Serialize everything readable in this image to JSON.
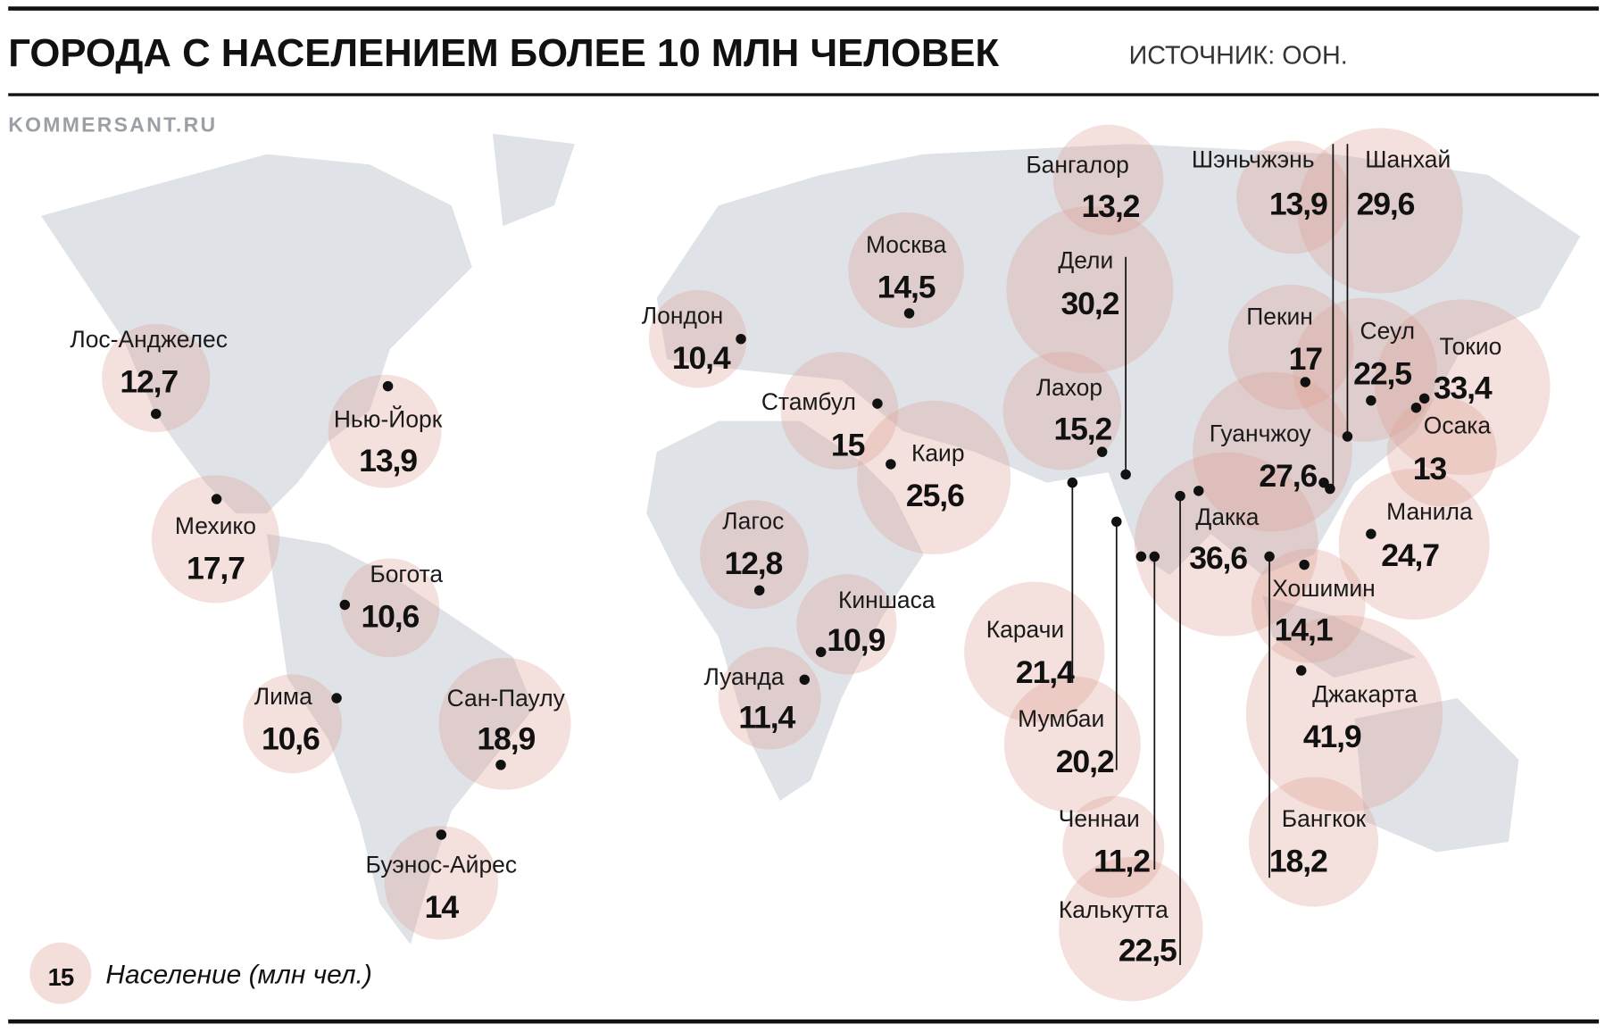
{
  "header": {
    "title": "ГОРОДА С НАСЕЛЕНИЕМ БОЛЕЕ 10 МЛН ЧЕЛОВЕК",
    "source": "ИСТОЧНИК: ООН.",
    "site": "KOMMERSANT.RU"
  },
  "cities": [
    {
      "name": "Лос-Анджелес",
      "value": 12.7,
      "label": "12,7"
    },
    {
      "name": "Нью-Йорк",
      "value": 13.9,
      "label": "13,9"
    },
    {
      "name": "Мехико",
      "value": 17.7,
      "label": "17,7"
    },
    {
      "name": "Богота",
      "value": 10.6,
      "label": "10,6"
    },
    {
      "name": "Лима",
      "value": 10.6,
      "label": "10,6"
    },
    {
      "name": "Сан-Паулу",
      "value": 18.9,
      "label": "18,9"
    },
    {
      "name": "Буэнос-Айрес",
      "value": 14
    },
    {
      "name": "Лондон",
      "value": 10.4,
      "label": "10,4"
    },
    {
      "name": "Стамбул",
      "value": 15
    },
    {
      "name": "Каир",
      "value": 25.6,
      "label": "25,6"
    },
    {
      "name": "Москва",
      "value": 14.5,
      "label": "14,5"
    },
    {
      "name": "Лагос",
      "value": 12.8,
      "label": "12,8"
    },
    {
      "name": "Киншаса",
      "value": 10.9,
      "label": "10,9"
    },
    {
      "name": "Луанда",
      "value": 11.4,
      "label": "11,4"
    },
    {
      "name": "Бангалор",
      "value": 13.2,
      "label": "13,2"
    },
    {
      "name": "Дели",
      "value": 30.2,
      "label": "30,2"
    },
    {
      "name": "Лахор",
      "value": 15.2,
      "label": "15,2"
    },
    {
      "name": "Карачи",
      "value": 21.4,
      "label": "21,4"
    },
    {
      "name": "Мумбаи",
      "value": 20.2,
      "label": "20,2"
    },
    {
      "name": "Ченнаи",
      "value": 11.2,
      "label": "11,2"
    },
    {
      "name": "Калькутта",
      "value": 22.5,
      "label": "22,5"
    },
    {
      "name": "Дакка",
      "value": 36.6,
      "label": "36,6"
    },
    {
      "name": "Шэньчжэнь",
      "value": 13.9,
      "label": "13,9"
    },
    {
      "name": "Шанхай",
      "value": 29.6,
      "label": "29,6"
    },
    {
      "name": "Пекин",
      "value": 17
    },
    {
      "name": "Сеул",
      "value": 22.5,
      "label": "22,5"
    },
    {
      "name": "Токио",
      "value": 33.4,
      "label": "33,4"
    },
    {
      "name": "Осака",
      "value": 13
    },
    {
      "name": "Гуанчжоу",
      "value": 27.6,
      "label": "27,6"
    },
    {
      "name": "Манила",
      "value": 24.7,
      "label": "24,7"
    },
    {
      "name": "Хошимин",
      "value": 14.1,
      "label": "14,1"
    },
    {
      "name": "Джакарта",
      "value": 41.9,
      "label": "41,9"
    },
    {
      "name": "Бангкок",
      "value": 18.2,
      "label": "18,2"
    }
  ],
  "legend": {
    "sample": 15,
    "text": "Население (млн чел.)"
  }
}
